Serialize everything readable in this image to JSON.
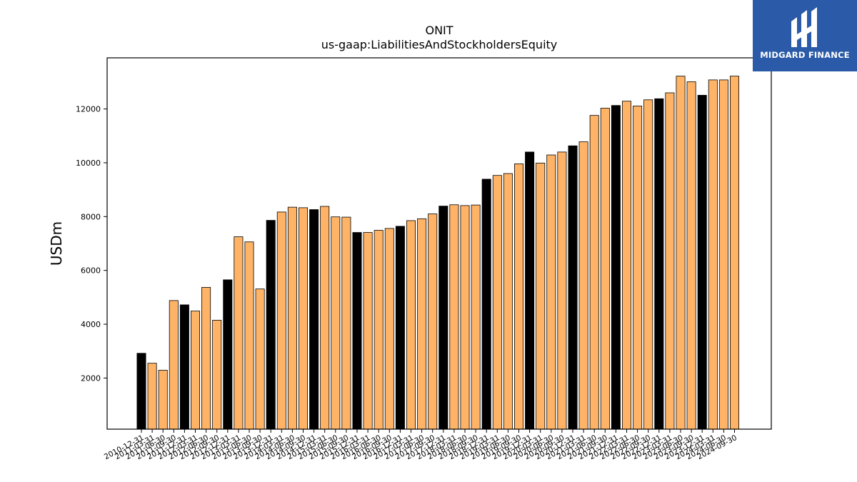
{
  "brand": {
    "name": "MIDGARD FINANCE",
    "bg_color": "#2b5aa8"
  },
  "chart_data": {
    "type": "bar",
    "title": "ONIT",
    "subtitle": "us-gaap:LiabilitiesAndStockholdersEquity",
    "ylabel": "USDm",
    "xlabel": "",
    "ylim": [
      100,
      13900
    ],
    "yticks": [
      2000,
      4000,
      6000,
      8000,
      10000,
      12000
    ],
    "colors": {
      "annual": "#000000",
      "quarterly": "#ffb366",
      "edge": "#000000"
    },
    "categories": [
      "2010-12-31",
      "2011-03-31",
      "2011-06-30",
      "2011-09-30",
      "2011-12-31",
      "2012-03-31",
      "2012-06-30",
      "2012-09-30",
      "2012-12-31",
      "2013-03-31",
      "2013-06-30",
      "2013-09-30",
      "2013-12-31",
      "2014-03-31",
      "2014-06-30",
      "2014-09-30",
      "2014-12-31",
      "2015-03-31",
      "2015-06-30",
      "2015-09-30",
      "2015-12-31",
      "2016-03-31",
      "2016-06-30",
      "2016-09-30",
      "2016-12-31",
      "2017-03-31",
      "2017-06-30",
      "2017-09-30",
      "2017-12-31",
      "2018-03-31",
      "2018-06-30",
      "2018-09-30",
      "2018-12-31",
      "2019-03-31",
      "2019-06-30",
      "2019-09-30",
      "2019-12-31",
      "2020-03-31",
      "2020-06-30",
      "2020-09-30",
      "2020-12-31",
      "2021-03-31",
      "2021-06-30",
      "2021-09-30",
      "2021-12-31",
      "2022-03-31",
      "2022-06-30",
      "2022-09-30",
      "2022-12-31",
      "2023-03-31",
      "2023-06-30",
      "2023-09-30",
      "2023-12-31",
      "2024-03-31",
      "2024-06-30",
      "2024-09-30"
    ],
    "series": [
      {
        "values": [
          2920,
          2550,
          2290,
          4880,
          4720,
          4490,
          5370,
          4150,
          5650,
          7250,
          7060,
          5310,
          7860,
          8170,
          8350,
          8330,
          8260,
          8380,
          7990,
          7980,
          7410,
          7410,
          7490,
          7560,
          7640,
          7850,
          7920,
          8100,
          8390,
          8440,
          8410,
          8430,
          9390,
          9530,
          9600,
          9960,
          10400,
          9990,
          10290,
          10400,
          10630,
          10780,
          11760,
          12030,
          12130,
          12290,
          12110,
          12340,
          12380,
          12600,
          13220,
          13010,
          12510,
          13080,
          13080,
          13220
        ],
        "period_type": [
          "annual",
          "quarterly",
          "quarterly",
          "quarterly",
          "annual",
          "quarterly",
          "quarterly",
          "quarterly",
          "annual",
          "quarterly",
          "quarterly",
          "quarterly",
          "annual",
          "quarterly",
          "quarterly",
          "quarterly",
          "annual",
          "quarterly",
          "quarterly",
          "quarterly",
          "annual",
          "quarterly",
          "quarterly",
          "quarterly",
          "annual",
          "quarterly",
          "quarterly",
          "quarterly",
          "annual",
          "quarterly",
          "quarterly",
          "quarterly",
          "annual",
          "quarterly",
          "quarterly",
          "quarterly",
          "annual",
          "quarterly",
          "quarterly",
          "quarterly",
          "annual",
          "quarterly",
          "quarterly",
          "quarterly",
          "annual",
          "quarterly",
          "quarterly",
          "quarterly",
          "annual",
          "quarterly",
          "quarterly",
          "quarterly",
          "annual",
          "quarterly",
          "quarterly",
          "quarterly"
        ]
      }
    ],
    "grid": false,
    "legend": "none"
  }
}
